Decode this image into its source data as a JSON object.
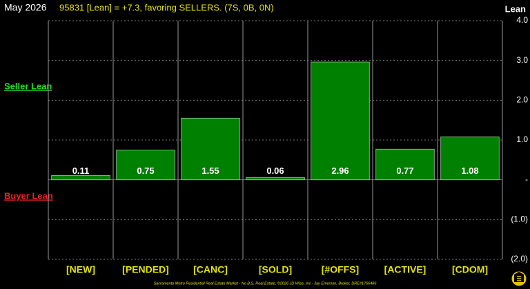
{
  "chart_data": {
    "type": "bar",
    "title": "May 2026",
    "subtitle": "95831 [Lean] = +7.3, favoring SELLERS. (7S, 0B, 0N)",
    "y_axis_label": "Lean",
    "annotations": [
      "Seller Lean",
      "Buyer Lean"
    ],
    "footer": "Sacramento Metro Residential Real Estate Market - No B.S. Real Estate, ©2026 JD Wise, Inc - Jay Emerson, Broker, DRE#1766486",
    "categories": [
      "[NEW]",
      "[PENDED]",
      "[CANC]",
      "[SOLD]",
      "[#OFFS]",
      "[ACTIVE]",
      "[CDOM]"
    ],
    "values": [
      0.11,
      0.75,
      1.55,
      0.06,
      2.96,
      0.77,
      1.08
    ],
    "color": "#008000",
    "ylim": [
      -2,
      4
    ],
    "yticks": [
      {
        "value": 4,
        "label": "4.0"
      },
      {
        "value": 3,
        "label": "3.0"
      },
      {
        "value": 2,
        "label": "2.0"
      },
      {
        "value": 1,
        "label": "1.0"
      },
      {
        "value": 0,
        "label": "-"
      },
      {
        "value": -1,
        "label": "(1.0)"
      },
      {
        "value": -2,
        "label": "(2.0)"
      }
    ],
    "grid": true
  }
}
